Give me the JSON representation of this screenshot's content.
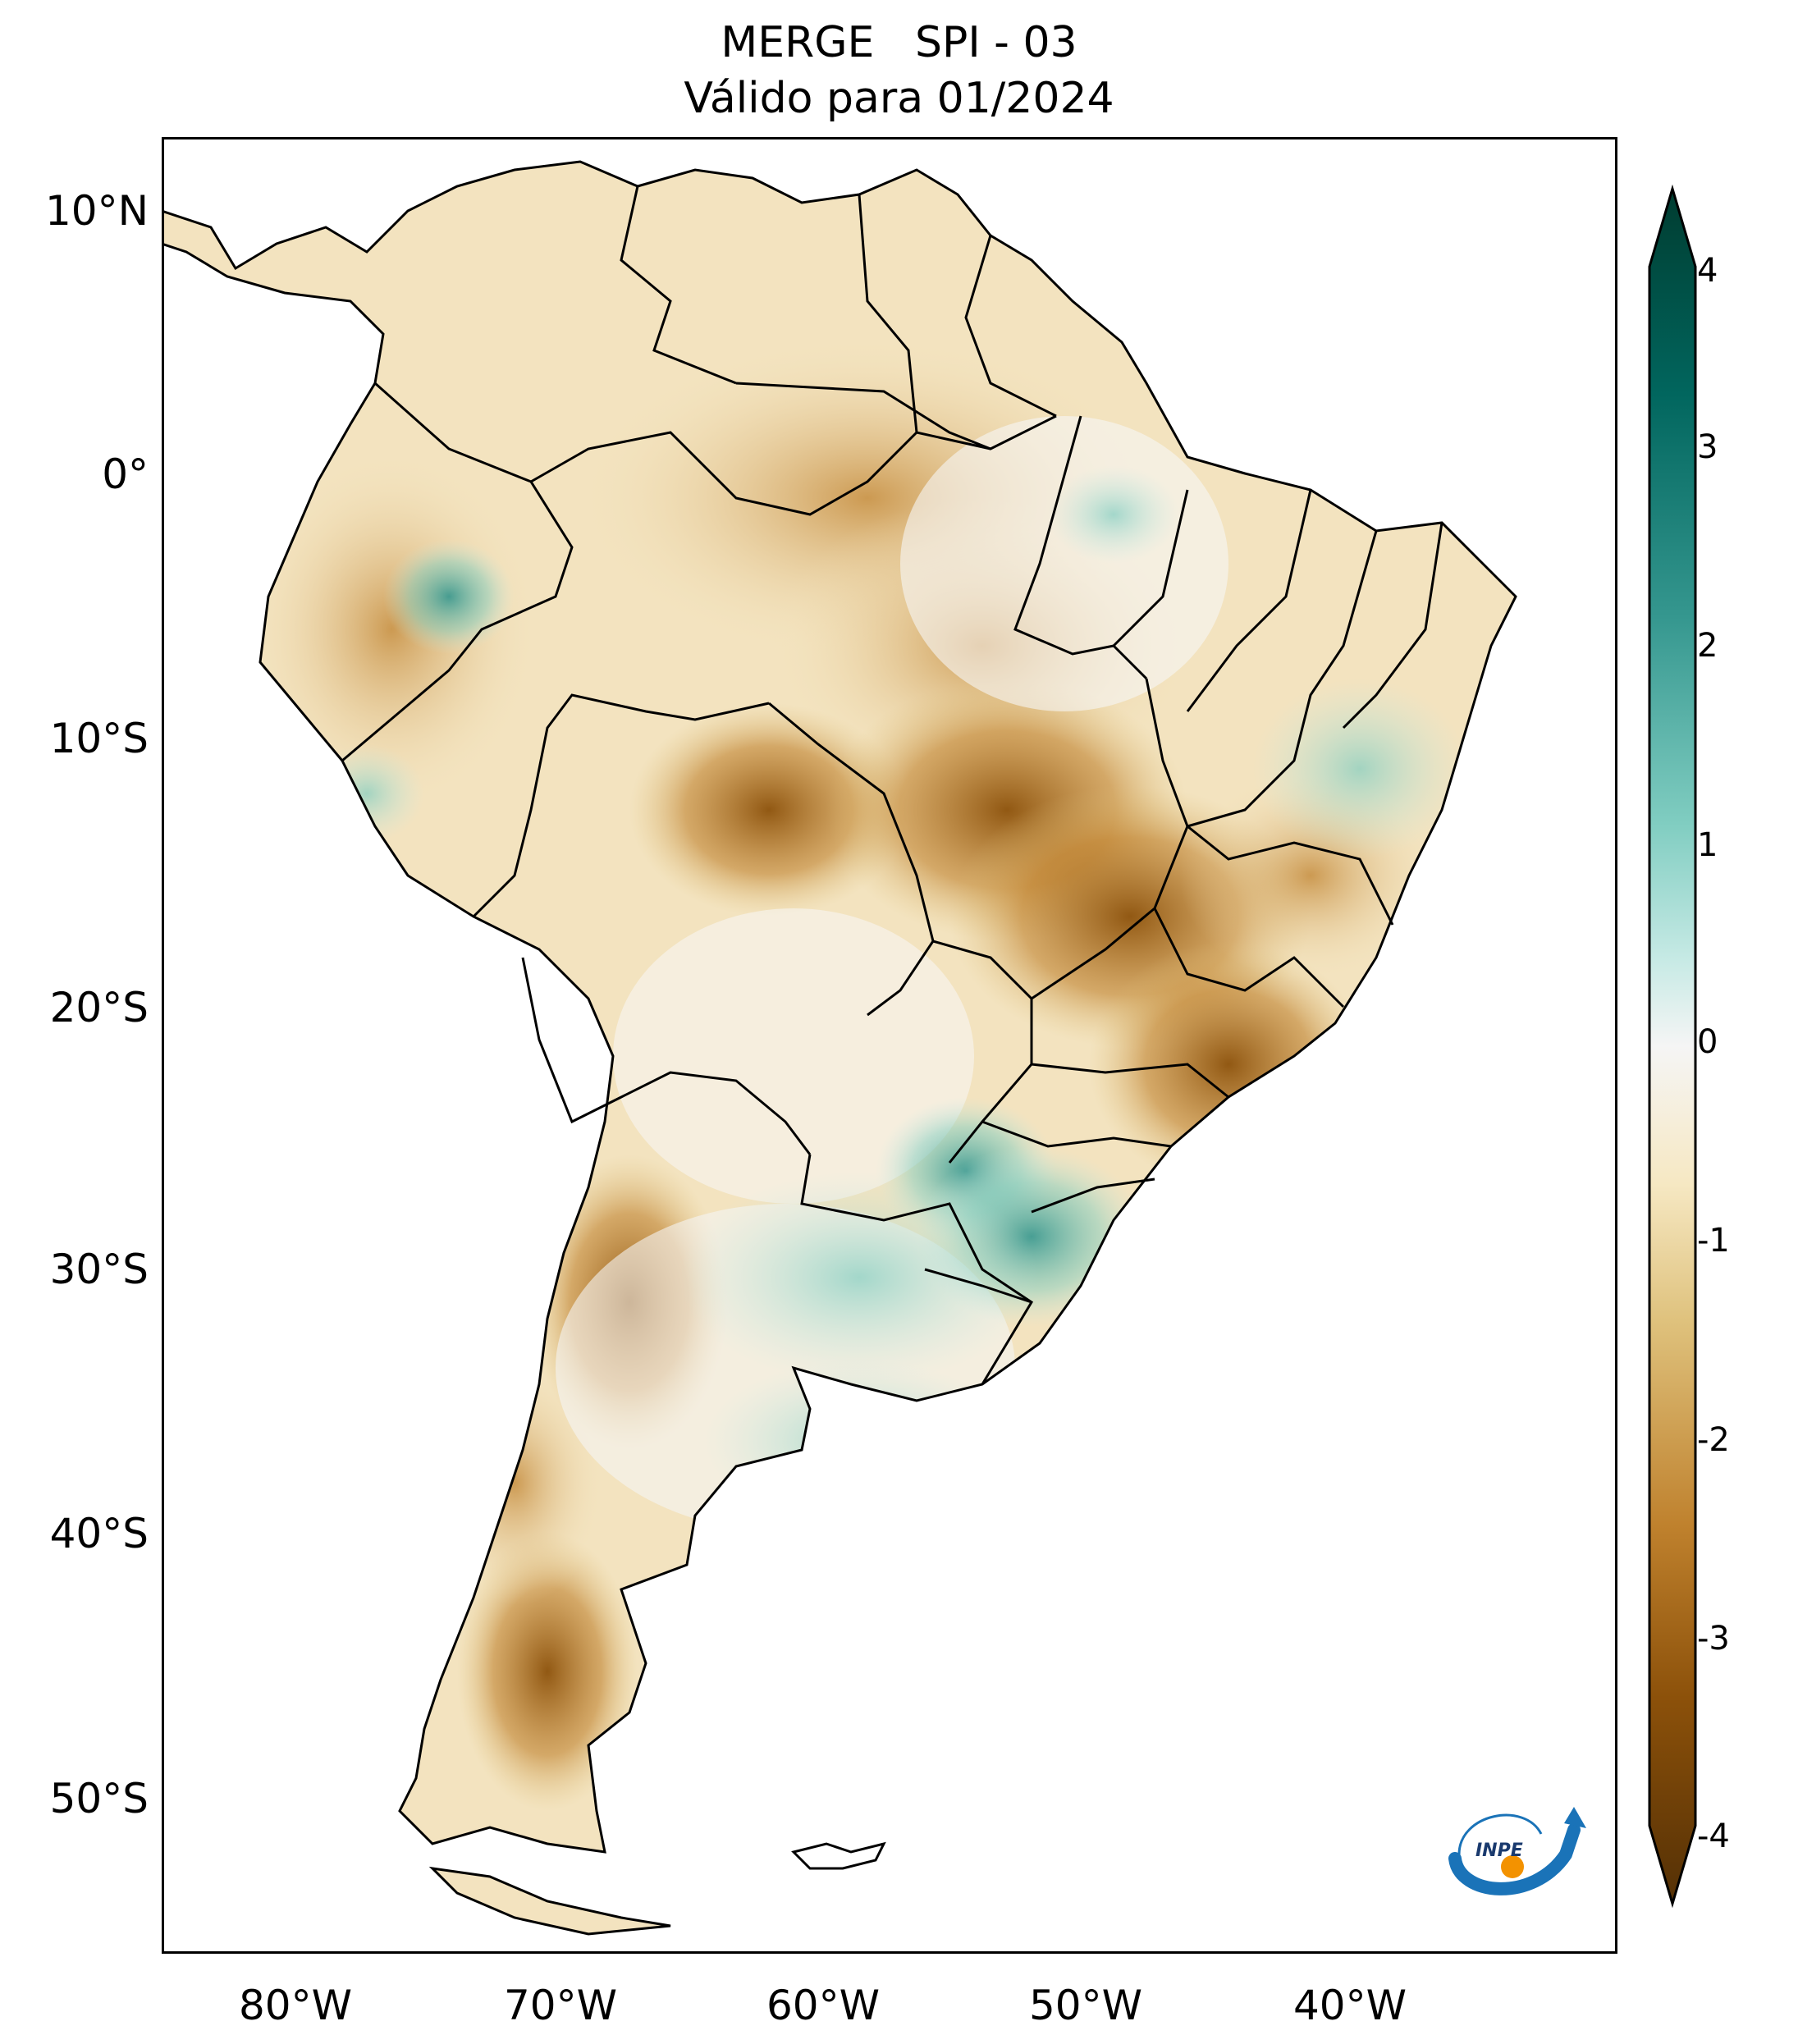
{
  "figure": {
    "title_line1": "MERGE   SPI - 03",
    "title_line2": "Válido para 01/2024"
  },
  "map": {
    "lat_ticks": [
      "10°N",
      "0°",
      "10°S",
      "20°S",
      "30°S",
      "40°S",
      "50°S"
    ],
    "lon_ticks": [
      "80°W",
      "70°W",
      "60°W",
      "50°W",
      "40°W"
    ],
    "extent": {
      "lon_min": -86,
      "lon_max": -30,
      "lat_min": -56,
      "lat_max": 13
    }
  },
  "colorbar": {
    "ticks": [
      "4",
      "3",
      "2",
      "1",
      "0",
      "-1",
      "-2",
      "-3",
      "-4"
    ],
    "colors": {
      "wet_extreme": "#003c30",
      "wet": "#35978f",
      "neutral": "#f5f5f5",
      "dry": "#dfc27d",
      "dry_extreme": "#543005"
    },
    "extend": "both"
  },
  "logo": {
    "text": "INPE"
  }
}
